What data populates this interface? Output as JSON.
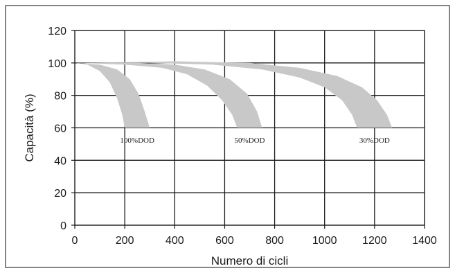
{
  "chart_data": {
    "type": "area",
    "title": "",
    "xlabel": "Numero di cicli",
    "ylabel": "Capacità (%)",
    "xlim": [
      0,
      1400
    ],
    "ylim": [
      0,
      120
    ],
    "x_ticks": [
      0,
      200,
      400,
      600,
      800,
      1000,
      1200,
      1400
    ],
    "y_ticks": [
      0,
      20,
      40,
      60,
      80,
      100,
      120
    ],
    "x_tick_labels": [
      "0",
      "200",
      "400",
      "600",
      "800",
      "1000",
      "1200",
      "1400"
    ],
    "y_tick_labels": [
      "0",
      "20",
      "40",
      "60",
      "80",
      "100",
      "120"
    ],
    "grid": true,
    "band_color": "#c8c8c8",
    "series": [
      {
        "name": "100%DOD",
        "label": "100%DOD",
        "lower": [
          [
            0,
            100
          ],
          [
            50,
            99
          ],
          [
            100,
            95
          ],
          [
            140,
            88
          ],
          [
            170,
            78
          ],
          [
            190,
            68
          ],
          [
            200,
            60
          ]
        ],
        "upper": [
          [
            0,
            100
          ],
          [
            100,
            99
          ],
          [
            170,
            96
          ],
          [
            220,
            90
          ],
          [
            255,
            81
          ],
          [
            280,
            70
          ],
          [
            300,
            60
          ]
        ]
      },
      {
        "name": "50%DOD",
        "label": "50%DOD",
        "lower": [
          [
            0,
            100
          ],
          [
            200,
            99
          ],
          [
            350,
            97
          ],
          [
            450,
            93
          ],
          [
            530,
            86
          ],
          [
            590,
            77
          ],
          [
            630,
            68
          ],
          [
            650,
            60
          ]
        ],
        "upper": [
          [
            0,
            100
          ],
          [
            250,
            100
          ],
          [
            400,
            99
          ],
          [
            520,
            96
          ],
          [
            620,
            90
          ],
          [
            690,
            81
          ],
          [
            730,
            70
          ],
          [
            750,
            60
          ]
        ]
      },
      {
        "name": "30%DOD",
        "label": "30%DOD",
        "lower": [
          [
            0,
            100
          ],
          [
            300,
            100
          ],
          [
            550,
            99
          ],
          [
            750,
            96
          ],
          [
            900,
            91
          ],
          [
            1000,
            85
          ],
          [
            1070,
            77
          ],
          [
            1110,
            68
          ],
          [
            1130,
            60
          ]
        ],
        "upper": [
          [
            0,
            100
          ],
          [
            400,
            101
          ],
          [
            700,
            100
          ],
          [
            900,
            97
          ],
          [
            1050,
            92
          ],
          [
            1150,
            85
          ],
          [
            1210,
            77
          ],
          [
            1250,
            68
          ],
          [
            1270,
            60
          ]
        ]
      }
    ]
  }
}
